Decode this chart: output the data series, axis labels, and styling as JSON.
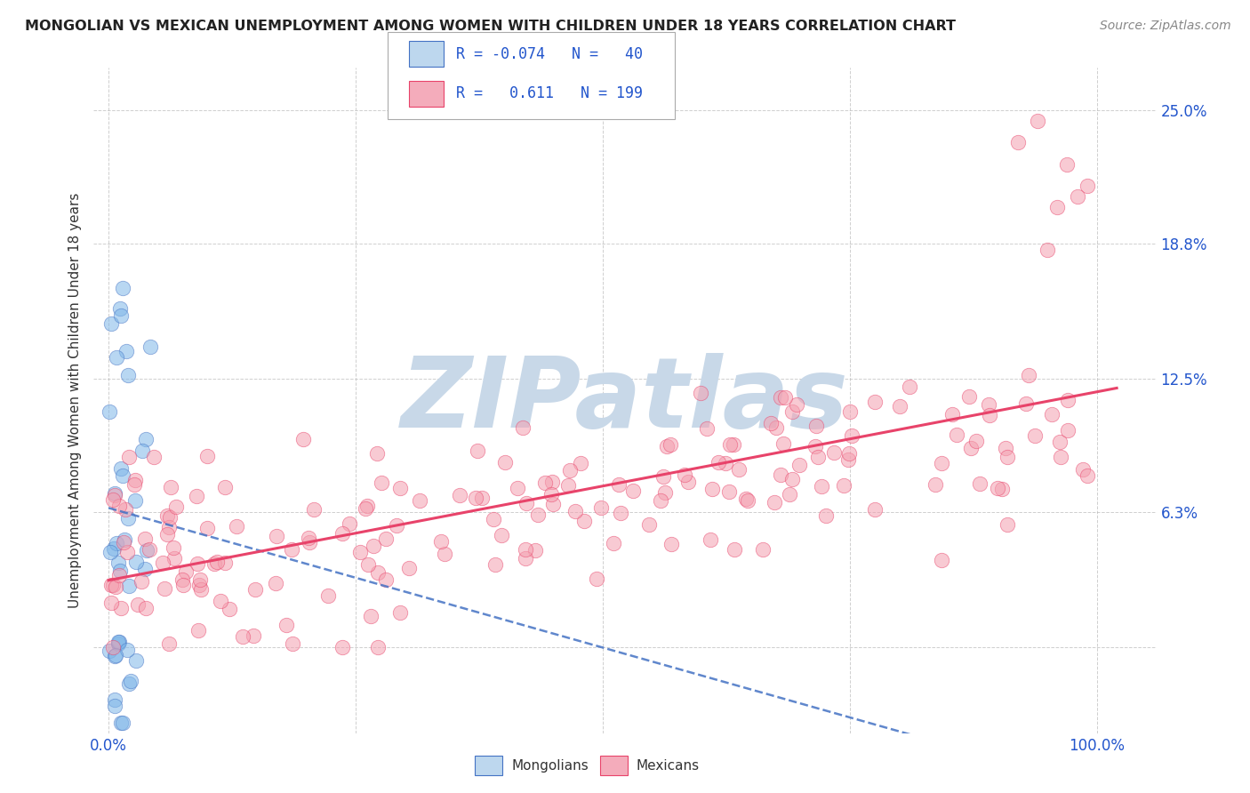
{
  "title": "MONGOLIAN VS MEXICAN UNEMPLOYMENT AMONG WOMEN WITH CHILDREN UNDER 18 YEARS CORRELATION CHART",
  "source": "Source: ZipAtlas.com",
  "ylabel": "Unemployment Among Women with Children Under 18 years",
  "x_tick_labels": [
    "0.0%",
    "100.0%"
  ],
  "y_tick_labels": [
    "",
    "6.3%",
    "12.5%",
    "18.8%",
    "25.0%"
  ],
  "y_ticks": [
    0.0,
    0.063,
    0.125,
    0.188,
    0.25
  ],
  "mongolian_R": -0.074,
  "mongolian_N": 40,
  "mexican_R": 0.611,
  "mexican_N": 199,
  "scatter_mongolian_color": "#7EB6E8",
  "scatter_mexican_color": "#F4A0B0",
  "trend_mongolian_color": "#4472C4",
  "trend_mexican_color": "#E8436A",
  "legend_box_mongolian_fill": "#BDD7EE",
  "legend_box_mongolian_edge": "#4472C4",
  "legend_box_mexican_fill": "#F4ACBB",
  "legend_box_mexican_edge": "#E8436A",
  "watermark_text": "ZIPatlas",
  "watermark_color": "#C8D8E8",
  "background_color": "#FFFFFF",
  "grid_color": "#BBBBBB",
  "tick_label_color": "#2255CC",
  "figsize": [
    14.06,
    8.92
  ],
  "dpi": 100,
  "xlim": [
    -0.015,
    1.06
  ],
  "ylim": [
    -0.04,
    0.27
  ]
}
